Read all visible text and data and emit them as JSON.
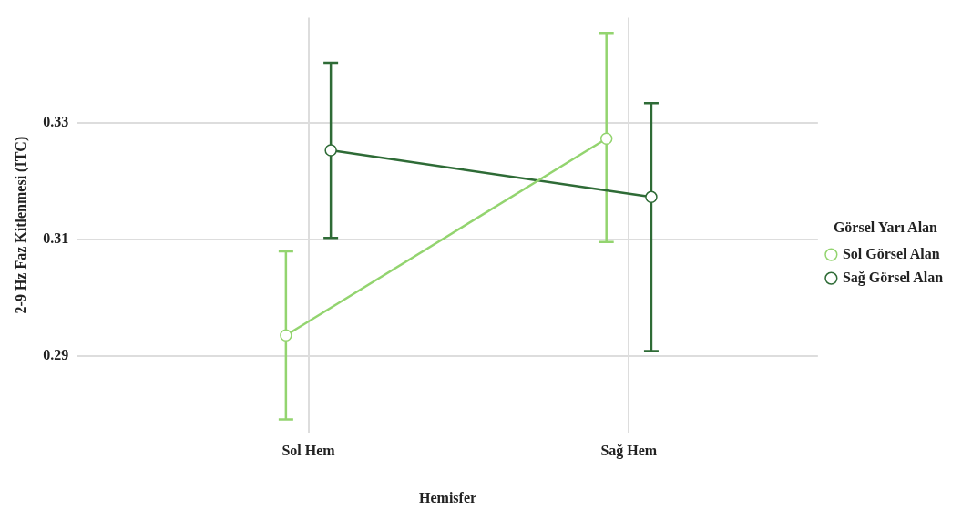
{
  "chart_data": {
    "type": "line",
    "xlabel": "Hemisfer",
    "ylabel": "2-9 Hz Faz Kitlenmesi (ITC)",
    "legend_title": "Görsel Yarı Alan",
    "categories": [
      "Sol Hem",
      "Sağ Hem"
    ],
    "series": [
      {
        "name": "Sol Görsel Alan",
        "color": "#93d46f",
        "values": [
          0.2936,
          0.3273
        ],
        "errors": [
          [
            0.2792,
            0.308
          ],
          [
            0.3096,
            0.3454
          ]
        ]
      },
      {
        "name": "Sağ Görsel Alan",
        "color": "#2e6b36",
        "values": [
          0.3253,
          0.3173
        ],
        "errors": [
          [
            0.3103,
            0.3403
          ],
          [
            0.2909,
            0.3334
          ]
        ]
      }
    ],
    "ylim": [
      0.277,
      0.348
    ],
    "yticks": [
      0.29,
      0.31,
      0.33
    ],
    "grid": true,
    "legend": "right",
    "marker": "circle",
    "line_style": "solid"
  }
}
